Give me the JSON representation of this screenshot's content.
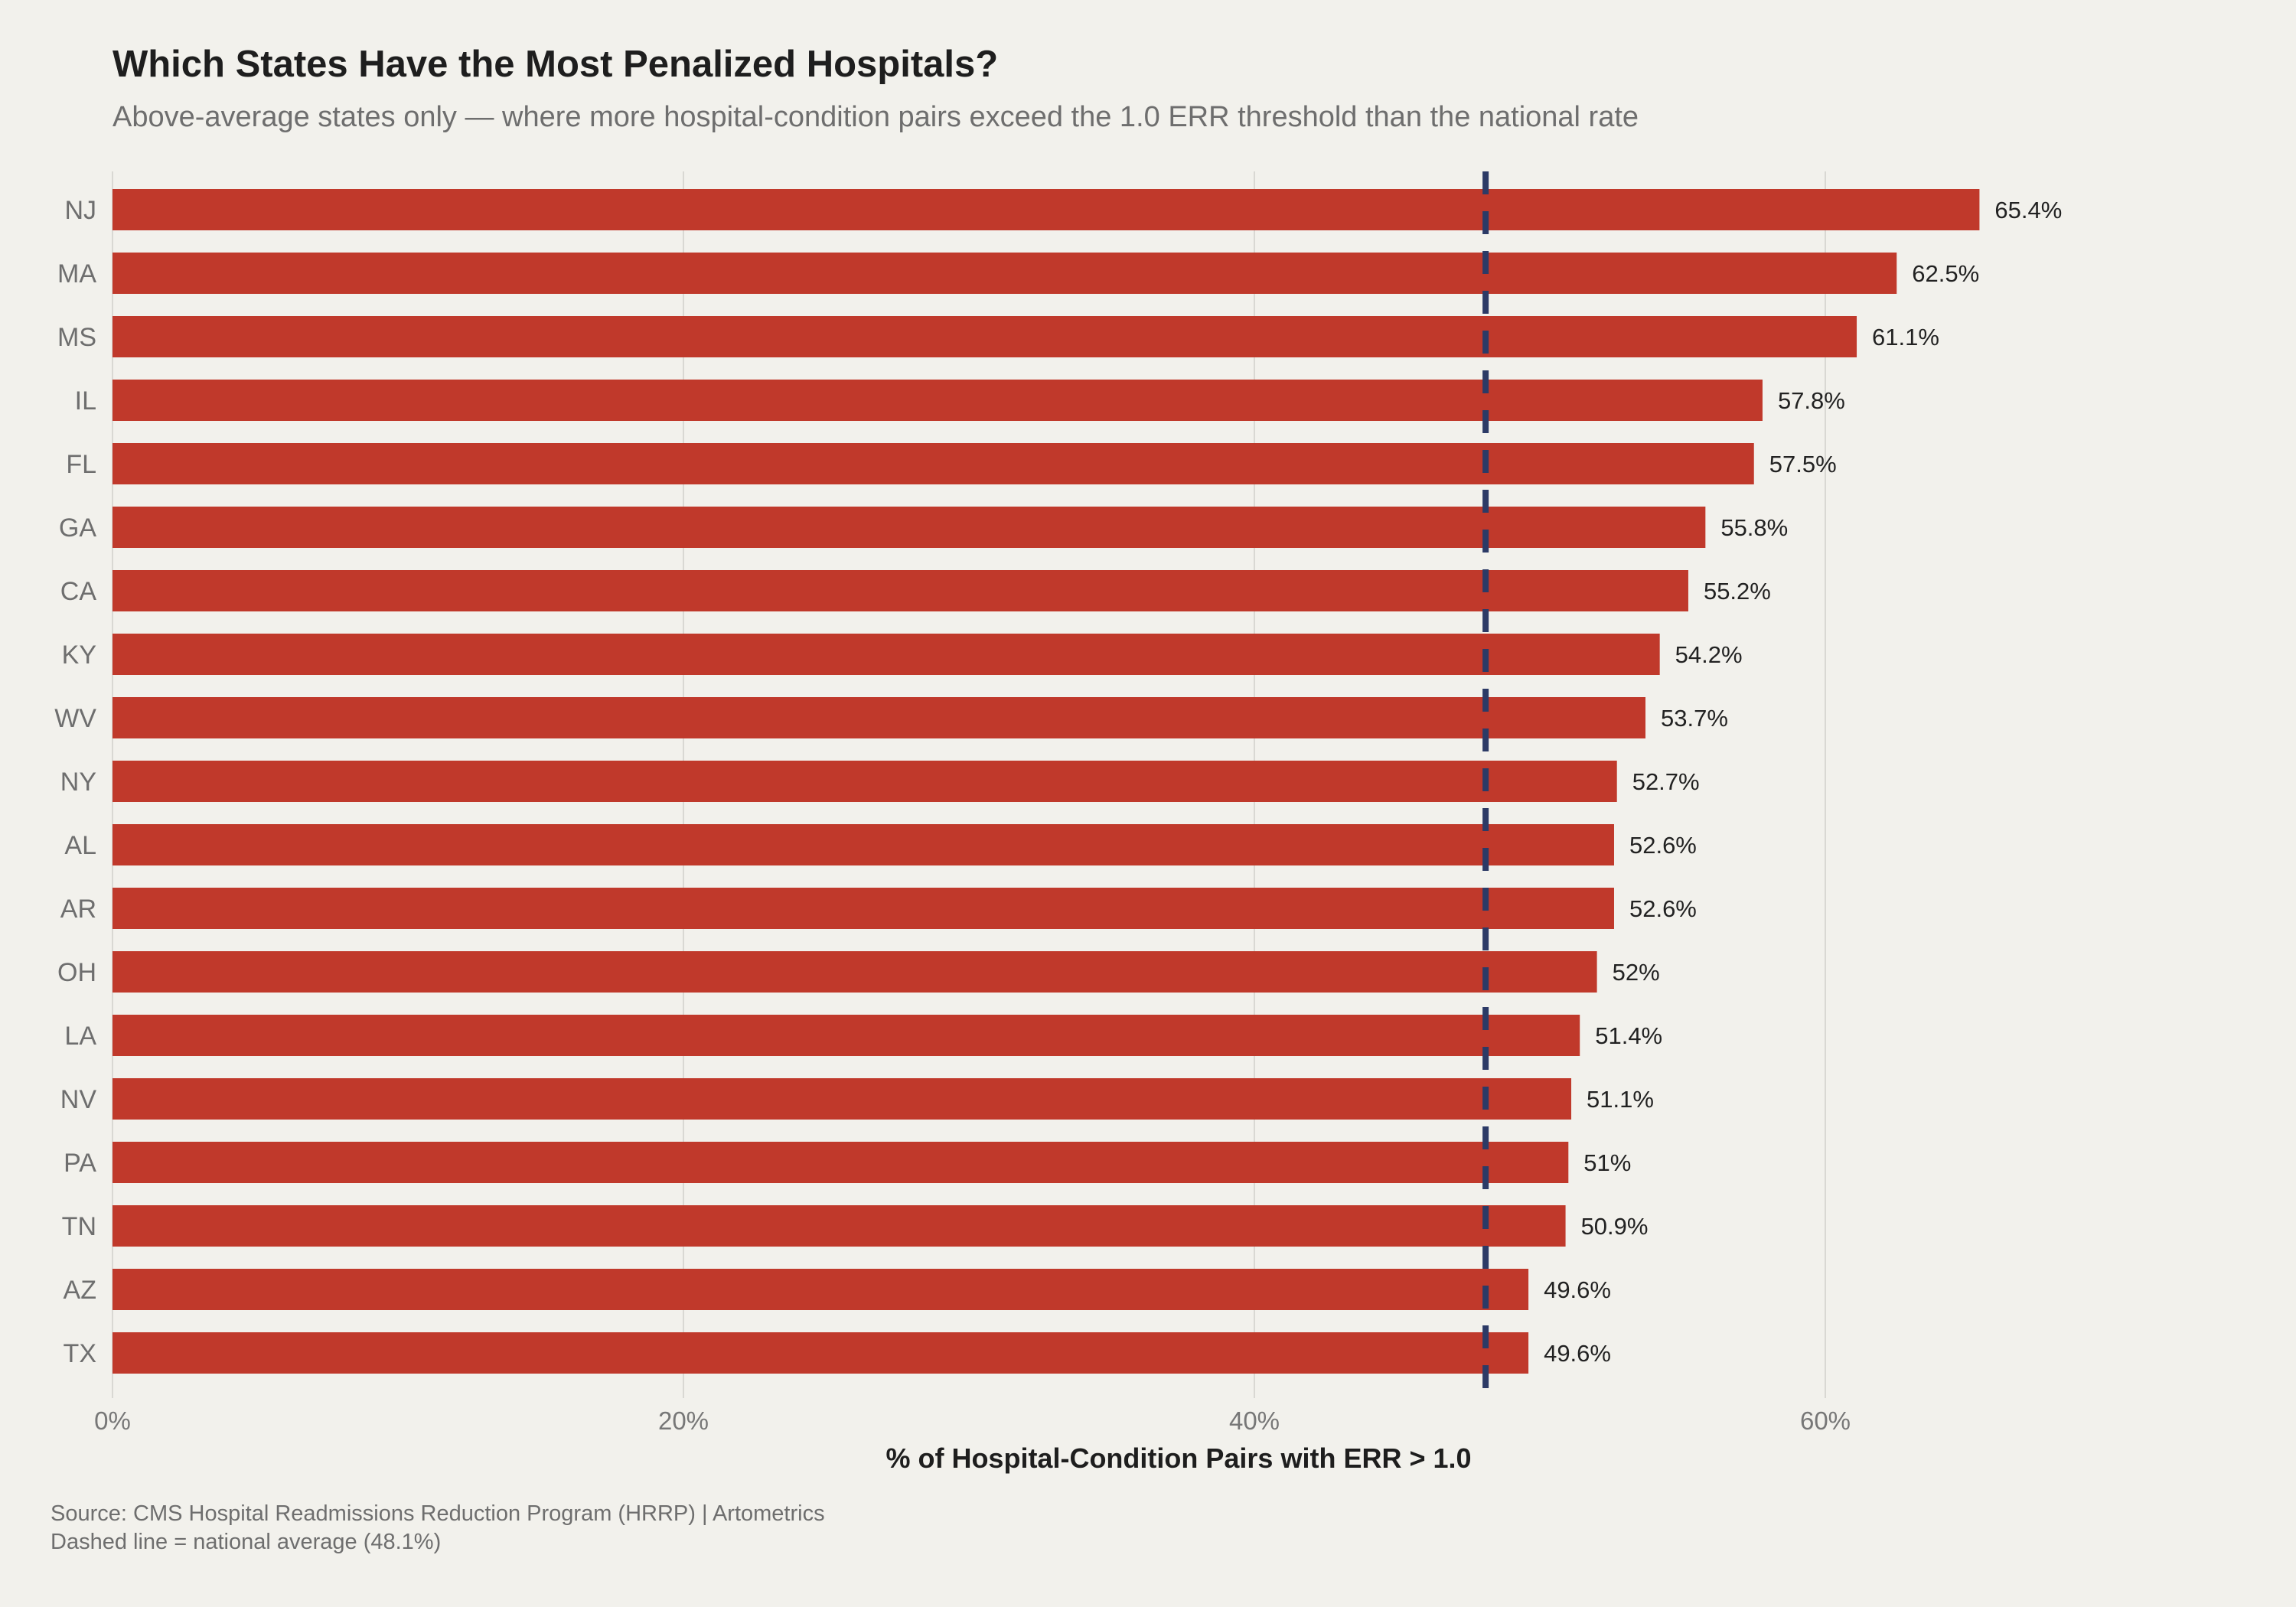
{
  "title": "Which States Have the Most Penalized Hospitals?",
  "subtitle": "Above-average states only — where more hospital-condition pairs exceed the 1.0 ERR threshold than the national rate",
  "caption": {
    "line1": "Source: CMS Hospital Readmissions Reduction Program (HRRP) | Artometrics",
    "line2": "Dashed line = national average (48.1%)"
  },
  "colors": {
    "bar": "#c0392b",
    "reference_line": "#2c3a66",
    "background": "#f2f1ec",
    "grid": "#d9d8d3"
  },
  "chart_data": {
    "type": "bar",
    "orientation": "horizontal",
    "categories": [
      "NJ",
      "MA",
      "MS",
      "IL",
      "FL",
      "GA",
      "CA",
      "KY",
      "WV",
      "NY",
      "AL",
      "AR",
      "OH",
      "LA",
      "NV",
      "PA",
      "TN",
      "AZ",
      "TX"
    ],
    "values": [
      65.4,
      62.5,
      61.1,
      57.8,
      57.5,
      55.8,
      55.2,
      54.2,
      53.7,
      52.7,
      52.6,
      52.6,
      52,
      51.4,
      51.1,
      51,
      50.9,
      49.6,
      49.6
    ],
    "data_labels": [
      "65.4%",
      "62.5%",
      "61.1%",
      "57.8%",
      "57.5%",
      "55.8%",
      "55.2%",
      "54.2%",
      "53.7%",
      "52.7%",
      "52.6%",
      "52.6%",
      "52%",
      "51.4%",
      "51.1%",
      "51%",
      "50.9%",
      "49.6%",
      "49.6%"
    ],
    "xlabel": "% of Hospital-Condition Pairs with ERR > 1.0",
    "ylabel": "",
    "xlim": [
      0,
      70
    ],
    "x_ticks": [
      0,
      20,
      40,
      60
    ],
    "x_tick_labels": [
      "0%",
      "20%",
      "40%",
      "60%"
    ],
    "reference_line": {
      "value": 48.1,
      "style": "dashed"
    },
    "grid": "vertical major lines"
  }
}
